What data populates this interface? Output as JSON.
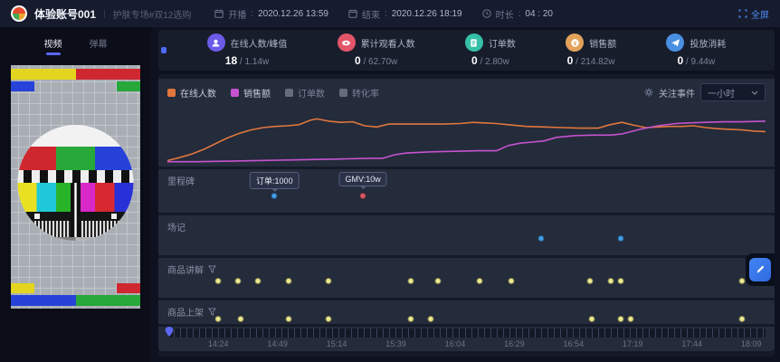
{
  "header": {
    "title": "体验账号001",
    "subtitle": "护肤专场#双12选购",
    "meta": [
      {
        "label": "开播",
        "value": "2020.12.26 13:59",
        "icon": "calendar-icon"
      },
      {
        "label": "结束",
        "value": "2020.12.26 18:19",
        "icon": "calendar-icon"
      },
      {
        "label": "时长",
        "value": "04 : 20",
        "icon": "clock-icon"
      }
    ],
    "fullscreen_label": "全屏"
  },
  "left_panel": {
    "tabs": [
      {
        "label": "视频",
        "active": true
      },
      {
        "label": "弹幕",
        "active": false
      }
    ]
  },
  "stats": [
    {
      "label": "在线人数/峰值",
      "current": "18",
      "total": "1.14w",
      "color": "#6c5be8",
      "icon": "user-icon"
    },
    {
      "label": "累计观看人数",
      "current": "0",
      "total": "62.70w",
      "color": "#e25568",
      "icon": "eye-icon"
    },
    {
      "label": "订单数",
      "current": "0",
      "total": "2.80w",
      "color": "#35c0a8",
      "icon": "order-icon"
    },
    {
      "label": "销售额",
      "current": "0",
      "total": "214.82w",
      "color": "#e3a25a",
      "icon": "coin-icon"
    },
    {
      "label": "投放消耗",
      "current": "0",
      "total": "9.44w",
      "color": "#4a90e2",
      "icon": "plane-icon"
    }
  ],
  "chart_panel": {
    "legend": [
      {
        "label": "在线人数",
        "color": "#e0773c",
        "active": true
      },
      {
        "label": "销售额",
        "color": "#c653cf",
        "active": true
      },
      {
        "label": "订单数",
        "color": "#646c7e",
        "active": false
      },
      {
        "label": "转化率",
        "color": "#646c7e",
        "active": false
      }
    ],
    "watch_label": "关注事件",
    "interval": "一小时"
  },
  "chart_data": {
    "type": "line",
    "grid": false,
    "legend_position": "top-left",
    "ylim": [
      0,
      100
    ],
    "y_unit": "relative (no y-axis ticks shown)",
    "x_unit": "percent of timeline 14:12–18:19",
    "series": [
      {
        "name": "在线人数",
        "color": "#e0773c",
        "visible": true,
        "x": [
          0,
          2,
          4,
          6,
          8,
          10,
          12,
          14,
          16,
          18,
          20,
          22,
          24,
          25,
          27,
          29,
          31,
          33,
          35,
          37,
          40,
          43,
          46,
          49,
          51,
          53,
          55,
          57,
          60,
          63,
          66,
          69,
          72,
          74,
          76,
          78,
          80,
          82,
          84,
          86,
          88,
          90,
          92,
          94,
          96,
          98,
          100
        ],
        "values": [
          4,
          9,
          15,
          23,
          33,
          43,
          51,
          57,
          61,
          63,
          64,
          66,
          74,
          76,
          72,
          70,
          71,
          64,
          62,
          67,
          67,
          67,
          67,
          68,
          70,
          69,
          68,
          66,
          63,
          62,
          61,
          60,
          60,
          66,
          70,
          65,
          61,
          62,
          63,
          63,
          64,
          61,
          59,
          58,
          57,
          55,
          54
        ]
      },
      {
        "name": "销售额",
        "color": "#c653cf",
        "visible": true,
        "x": [
          0,
          5,
          10,
          15,
          20,
          25,
          30,
          34,
          36,
          38,
          40,
          44,
          48,
          52,
          55,
          57,
          59,
          61,
          63,
          65,
          68,
          71,
          74,
          76,
          79,
          82,
          85,
          87,
          90,
          93,
          96,
          100
        ],
        "values": [
          2,
          2,
          3,
          4,
          5,
          6,
          7,
          8,
          8,
          14,
          17,
          19,
          20,
          21,
          21,
          30,
          34,
          36,
          38,
          44,
          47,
          48,
          48,
          50,
          58,
          64,
          68,
          69,
          70,
          71,
          71,
          72
        ]
      },
      {
        "name": "订单数",
        "color": "#646c7e",
        "visible": false,
        "x": [],
        "values": []
      },
      {
        "name": "转化率",
        "color": "#646c7e",
        "visible": false,
        "x": [],
        "values": []
      }
    ]
  },
  "timeline": {
    "rows": [
      {
        "label": "里程碑",
        "has_filter": false,
        "events": [
          {
            "pct": 17.9,
            "color": "#42a0e8",
            "tooltip": "订单:1000"
          },
          {
            "pct": 32.7,
            "color": "#e05a64",
            "tooltip": "GMV:10w"
          }
        ]
      },
      {
        "label": "场记",
        "has_filter": false,
        "events": [
          {
            "pct": 62.5,
            "color": "#42a0e8"
          },
          {
            "pct": 75.8,
            "color": "#42a0e8"
          }
        ]
      },
      {
        "label": "商品讲解",
        "has_filter": true,
        "events": [
          {
            "pct": 8.5,
            "color": "#ece98f"
          },
          {
            "pct": 11.8,
            "color": "#ece98f"
          },
          {
            "pct": 15.1,
            "color": "#ece98f"
          },
          {
            "pct": 20.3,
            "color": "#ece98f"
          },
          {
            "pct": 27.0,
            "color": "#ece98f"
          },
          {
            "pct": 40.7,
            "color": "#ece98f"
          },
          {
            "pct": 45.3,
            "color": "#ece98f"
          },
          {
            "pct": 52.2,
            "color": "#ece98f"
          },
          {
            "pct": 57.5,
            "color": "#ece98f"
          },
          {
            "pct": 70.7,
            "color": "#ece98f"
          },
          {
            "pct": 74.2,
            "color": "#ece98f"
          },
          {
            "pct": 75.8,
            "color": "#ece98f"
          },
          {
            "pct": 96.0,
            "color": "#ece98f"
          }
        ]
      },
      {
        "label": "商品上架",
        "has_filter": true,
        "events": [
          {
            "pct": 8.5,
            "color": "#ece98f"
          },
          {
            "pct": 12.2,
            "color": "#ece98f"
          },
          {
            "pct": 20.3,
            "color": "#ece98f"
          },
          {
            "pct": 27.0,
            "color": "#ece98f"
          },
          {
            "pct": 40.7,
            "color": "#ece98f"
          },
          {
            "pct": 44.0,
            "color": "#ece98f"
          },
          {
            "pct": 70.9,
            "color": "#ece98f"
          },
          {
            "pct": 75.8,
            "color": "#ece98f"
          },
          {
            "pct": 77.4,
            "color": "#ece98f"
          },
          {
            "pct": 96.0,
            "color": "#ece98f"
          }
        ]
      }
    ],
    "axis_times": [
      {
        "time": "14:24",
        "pct": 8.5
      },
      {
        "time": "14:49",
        "pct": 18.4
      },
      {
        "time": "15:14",
        "pct": 28.3
      },
      {
        "time": "15:39",
        "pct": 38.2
      },
      {
        "time": "16:04",
        "pct": 48.1
      },
      {
        "time": "16:29",
        "pct": 58.0
      },
      {
        "time": "16:54",
        "pct": 67.9
      },
      {
        "time": "17:19",
        "pct": 77.8
      },
      {
        "time": "17:44",
        "pct": 87.7
      },
      {
        "time": "18:09",
        "pct": 97.6
      }
    ],
    "slider_pin_pct": 0.3
  }
}
